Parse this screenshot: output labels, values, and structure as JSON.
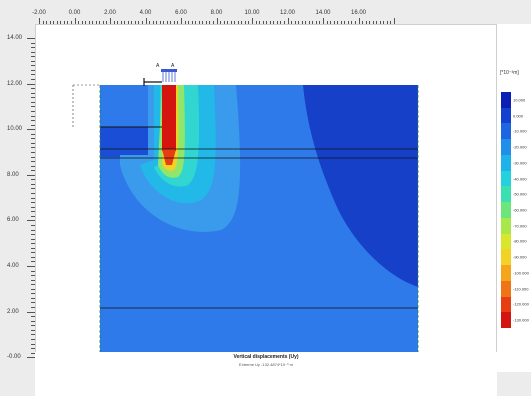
{
  "plot": {
    "title": "Vertical displacements (Uy)",
    "subtitle": "Extreme Uy -132.4874*10⁻³ m"
  },
  "axes": {
    "x_ticks": [
      "-2.00",
      "0.00",
      "2.00",
      "4.00",
      "6.00",
      "8.00",
      "10.00",
      "12.00",
      "14.00",
      "16.00"
    ],
    "y_ticks": [
      "14.00",
      "12.00",
      "10.00",
      "8.00",
      "6.00",
      "4.00",
      "2.00",
      "-0.00"
    ]
  },
  "legend": {
    "unit": "[*10⁻³m]",
    "labels": [
      "10.000",
      "0.000",
      "-10.000",
      "-20.000",
      "-30.000",
      "-40.000",
      "-50.000",
      "-60.000",
      "-70.000",
      "-80.000",
      "-90.000",
      "-100.000",
      "-110.000",
      "-120.000",
      "-130.000"
    ],
    "colors": [
      "#0b1fb5",
      "#1440d0",
      "#1c66e2",
      "#1f8fea",
      "#20b3ea",
      "#23d2dc",
      "#3ce0b0",
      "#6de57a",
      "#a8e84a",
      "#d8e62e",
      "#f2d224",
      "#f5a51c",
      "#f07416",
      "#e63e12",
      "#d4140e"
    ]
  },
  "markers": {
    "load_label_left": "A",
    "load_label_right": "A"
  }
}
